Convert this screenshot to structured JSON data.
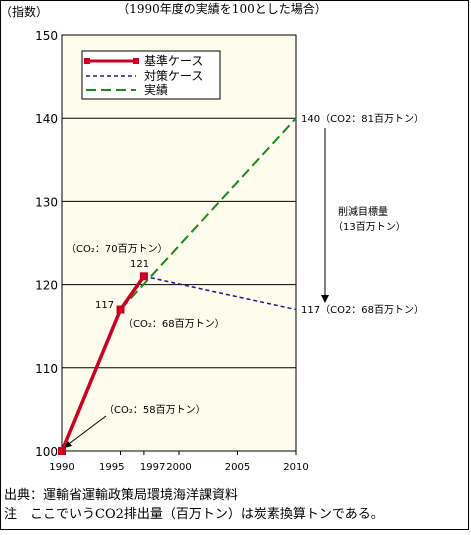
{
  "chart_data": {
    "type": "line",
    "title": "（1990年度の実績を100とした場合）",
    "ylabel": "（指数）",
    "xlabel": "",
    "ylim": [
      100,
      150
    ],
    "xlim": [
      1990,
      2010
    ],
    "yticks": [
      100,
      110,
      120,
      130,
      140,
      150
    ],
    "xticks": [
      "1990",
      "1995",
      "1997",
      "2000",
      "2005",
      "2010"
    ],
    "grid": true,
    "legend_position": "top-left",
    "series": [
      {
        "name": "基準ケース",
        "color": "#cc0022",
        "style": "solid-square-markers",
        "x": [
          1990,
          1995,
          1997
        ],
        "y": [
          100,
          117,
          121
        ]
      },
      {
        "name": "対策ケース",
        "color": "#1a1a8c",
        "style": "short-dash",
        "x": [
          1997,
          2010
        ],
        "y": [
          121,
          117
        ]
      },
      {
        "name": "実績",
        "color": "#1a8a1a",
        "style": "long-dash",
        "x": [
          1995,
          2010
        ],
        "y": [
          117,
          140
        ]
      }
    ],
    "point_labels": {
      "p117": "117",
      "p121": "121"
    },
    "annotations": {
      "co2_1997": "（CO₂：70百万トン）",
      "co2_1995": "（CO₂：68百万トン）",
      "co2_1990": "（CO₂：58百万トン）",
      "end_140": "140（CO2：81百万トン）",
      "end_117": "117（CO2：68百万トン）",
      "reduction_line1": "削減目標量",
      "reduction_line2": "（13百万トン）"
    }
  },
  "notes": {
    "source": "出典：運輸省運輸政策局環境海洋課資料",
    "note": "注　ここでいうCO2排出量（百万トン）は炭素換算トンである。"
  }
}
